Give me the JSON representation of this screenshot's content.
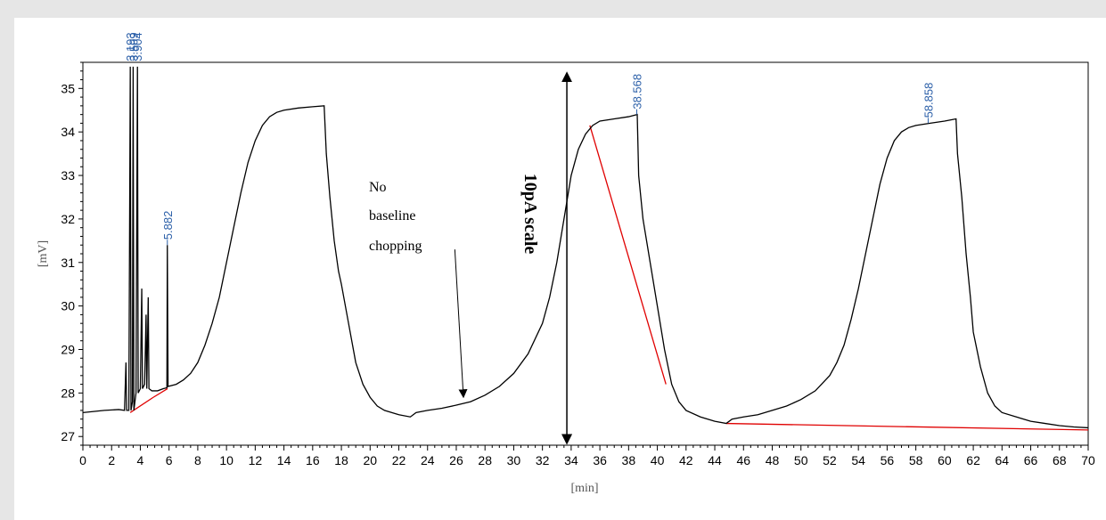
{
  "chart_data": {
    "type": "line",
    "title": "",
    "xlabel": "[min]",
    "ylabel": "[mV]",
    "xlim": [
      0,
      70
    ],
    "ylim": [
      26.8,
      35.6
    ],
    "x_ticks": [
      0,
      2,
      4,
      6,
      8,
      10,
      12,
      14,
      16,
      18,
      20,
      22,
      24,
      26,
      28,
      30,
      32,
      34,
      36,
      38,
      40,
      42,
      44,
      46,
      48,
      50,
      52,
      54,
      56,
      58,
      60,
      62,
      64,
      66,
      68,
      70
    ],
    "y_ticks": [
      27,
      28,
      29,
      30,
      31,
      32,
      33,
      34,
      35
    ],
    "grid": false,
    "line_color": "#000000",
    "baseline_color": "#e00000",
    "label_color": "#2b5fa8",
    "series": [
      {
        "points": [
          [
            0,
            27.55
          ],
          [
            1.5,
            27.6
          ],
          [
            2.5,
            27.62
          ],
          [
            2.9,
            27.6
          ],
          [
            3.0,
            28.7
          ],
          [
            3.05,
            27.6
          ],
          [
            3.2,
            27.6
          ],
          [
            3.3,
            35.5
          ],
          [
            3.35,
            27.6
          ],
          [
            3.45,
            27.8
          ],
          [
            3.5,
            35.5
          ],
          [
            3.55,
            27.6
          ],
          [
            3.7,
            28.0
          ],
          [
            3.8,
            35.5
          ],
          [
            3.85,
            28.0
          ],
          [
            4.0,
            28.1
          ],
          [
            4.1,
            30.4
          ],
          [
            4.15,
            28.1
          ],
          [
            4.3,
            28.2
          ],
          [
            4.4,
            29.8
          ],
          [
            4.45,
            28.1
          ],
          [
            4.55,
            30.2
          ],
          [
            4.6,
            28.1
          ],
          [
            4.8,
            28.05
          ],
          [
            5.2,
            28.05
          ],
          [
            5.6,
            28.1
          ],
          [
            5.85,
            28.12
          ],
          [
            5.88,
            31.4
          ],
          [
            5.93,
            28.15
          ],
          [
            6.5,
            28.2
          ],
          [
            7.0,
            28.3
          ],
          [
            7.5,
            28.45
          ],
          [
            8.0,
            28.7
          ],
          [
            8.5,
            29.1
          ],
          [
            9.0,
            29.6
          ],
          [
            9.5,
            30.2
          ],
          [
            10.0,
            31.0
          ],
          [
            10.5,
            31.8
          ],
          [
            11.0,
            32.6
          ],
          [
            11.5,
            33.3
          ],
          [
            12.0,
            33.8
          ],
          [
            12.5,
            34.15
          ],
          [
            13.0,
            34.35
          ],
          [
            13.5,
            34.45
          ],
          [
            14.0,
            34.5
          ],
          [
            15.0,
            34.55
          ],
          [
            16.0,
            34.58
          ],
          [
            16.8,
            34.6
          ],
          [
            16.95,
            33.5
          ],
          [
            17.2,
            32.5
          ],
          [
            17.5,
            31.5
          ],
          [
            17.8,
            30.8
          ],
          [
            18.0,
            30.5
          ],
          [
            18.5,
            29.6
          ],
          [
            19.0,
            28.7
          ],
          [
            19.5,
            28.2
          ],
          [
            20.0,
            27.9
          ],
          [
            20.5,
            27.7
          ],
          [
            21.0,
            27.6
          ],
          [
            22.0,
            27.5
          ],
          [
            22.8,
            27.45
          ],
          [
            23.2,
            27.55
          ],
          [
            24.0,
            27.6
          ],
          [
            25.0,
            27.65
          ],
          [
            26.0,
            27.72
          ],
          [
            27.0,
            27.8
          ],
          [
            28.0,
            27.95
          ],
          [
            29.0,
            28.15
          ],
          [
            30.0,
            28.45
          ],
          [
            31.0,
            28.9
          ],
          [
            32.0,
            29.6
          ],
          [
            32.5,
            30.2
          ],
          [
            33.0,
            31.0
          ],
          [
            33.5,
            32.0
          ],
          [
            34.0,
            33.0
          ],
          [
            34.5,
            33.6
          ],
          [
            35.0,
            33.95
          ],
          [
            35.5,
            34.15
          ],
          [
            36.0,
            34.25
          ],
          [
            37.0,
            34.3
          ],
          [
            38.0,
            34.35
          ],
          [
            38.6,
            34.4
          ],
          [
            38.7,
            33.0
          ],
          [
            39.0,
            32.0
          ],
          [
            39.5,
            31.0
          ],
          [
            40.0,
            30.0
          ],
          [
            40.5,
            29.0
          ],
          [
            41.0,
            28.2
          ],
          [
            41.5,
            27.8
          ],
          [
            42.0,
            27.6
          ],
          [
            43.0,
            27.45
          ],
          [
            44.0,
            27.35
          ],
          [
            44.8,
            27.3
          ],
          [
            45.2,
            27.4
          ],
          [
            46.0,
            27.45
          ],
          [
            47.0,
            27.5
          ],
          [
            48.0,
            27.6
          ],
          [
            49.0,
            27.7
          ],
          [
            50.0,
            27.85
          ],
          [
            51.0,
            28.05
          ],
          [
            52.0,
            28.4
          ],
          [
            52.5,
            28.7
          ],
          [
            53.0,
            29.1
          ],
          [
            53.5,
            29.7
          ],
          [
            54.0,
            30.4
          ],
          [
            54.5,
            31.2
          ],
          [
            55.0,
            32.0
          ],
          [
            55.5,
            32.8
          ],
          [
            56.0,
            33.4
          ],
          [
            56.5,
            33.8
          ],
          [
            57.0,
            34.0
          ],
          [
            57.5,
            34.1
          ],
          [
            58.0,
            34.15
          ],
          [
            59.0,
            34.2
          ],
          [
            60.0,
            34.25
          ],
          [
            60.8,
            34.3
          ],
          [
            60.9,
            33.5
          ],
          [
            61.2,
            32.5
          ],
          [
            61.5,
            31.2
          ],
          [
            61.8,
            30.2
          ],
          [
            62.0,
            29.4
          ],
          [
            62.5,
            28.6
          ],
          [
            63.0,
            28.0
          ],
          [
            63.5,
            27.7
          ],
          [
            64.0,
            27.55
          ],
          [
            65.0,
            27.45
          ],
          [
            66.0,
            27.35
          ],
          [
            67.0,
            27.3
          ],
          [
            68.0,
            27.25
          ],
          [
            69.0,
            27.22
          ],
          [
            70.0,
            27.2
          ]
        ]
      }
    ],
    "baselines": [
      [
        [
          3.3,
          27.55
        ],
        [
          4.9,
          27.9
        ]
      ],
      [
        [
          4.9,
          27.9
        ],
        [
          5.9,
          28.1
        ]
      ],
      [
        [
          35.3,
          34.15
        ],
        [
          40.6,
          28.2
        ]
      ],
      [
        [
          44.8,
          27.3
        ],
        [
          70,
          27.15
        ]
      ]
    ],
    "peak_labels": [
      {
        "x": 3.3,
        "text": "3.193",
        "y_top": 35.5
      },
      {
        "x": 3.5,
        "text": "3.509",
        "y_top": 35.5
      },
      {
        "x": 3.8,
        "text": "3.904",
        "y_top": 35.5
      },
      {
        "x": 5.882,
        "text": "5.882",
        "y_top": 31.4
      },
      {
        "x": 38.568,
        "text": "38.568",
        "y_top": 34.4
      },
      {
        "x": 58.858,
        "text": "58.858",
        "y_top": 34.2
      }
    ],
    "annotations": {
      "no_baseline_lines": [
        "No",
        "baseline",
        "chopping"
      ],
      "scale_label": "10pA scale",
      "arrow_from": [
        25.9,
        31.3
      ],
      "arrow_to": [
        26.5,
        27.9
      ],
      "scale_x": 33.7,
      "scale_from": 26.85,
      "scale_to": 35.35
    }
  }
}
